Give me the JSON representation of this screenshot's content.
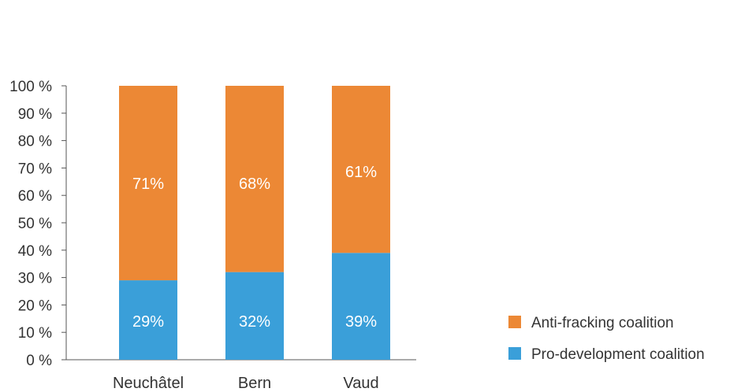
{
  "chart_data": {
    "type": "bar",
    "stacked": true,
    "categories": [
      "Neuchâtel",
      "Bern",
      "Vaud"
    ],
    "series": [
      {
        "name": "Pro-development coalition",
        "values": [
          29,
          32,
          39
        ],
        "labels": [
          "29%",
          "32%",
          "39%"
        ],
        "color": "#3a9fd9"
      },
      {
        "name": "Anti-fracking coalition",
        "values": [
          71,
          68,
          61
        ],
        "labels": [
          "71%",
          "68%",
          "61%"
        ],
        "color": "#ec8835"
      }
    ],
    "y_ticks": [
      "0 %",
      "10 %",
      "20 %",
      "30 %",
      "40 %",
      "50 %",
      "60 %",
      "70 %",
      "80 %",
      "90 %",
      "100 %"
    ],
    "ylim": [
      0,
      100
    ],
    "title": "",
    "xlabel": "",
    "ylabel": "",
    "grid": false,
    "legend": {
      "position": "bottom-right",
      "items": [
        "Anti-fracking coalition",
        "Pro-development coalition"
      ]
    }
  }
}
